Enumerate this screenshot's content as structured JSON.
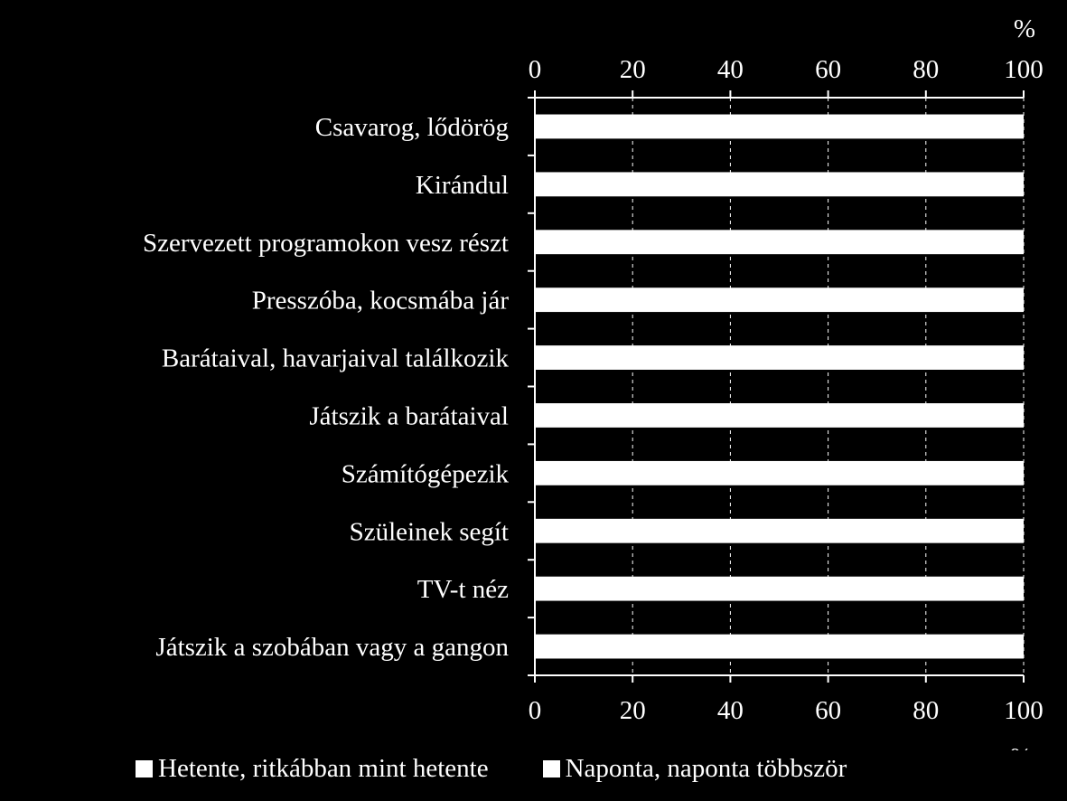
{
  "chart_data": {
    "type": "bar",
    "orientation": "horizontal",
    "stacked": true,
    "categories": [
      "Csavarog, lődörög",
      "Kirándul",
      "Szervezett programokon vesz részt",
      "Presszóba, kocsmába jár",
      "Barátaival, havarjaival találkozik",
      "Játszik a barátaival",
      "Számítógépezik",
      "Szüleinek segít",
      "TV-t néz",
      "Játszik a szobában vagy a gangon"
    ],
    "series": [
      {
        "name": "Hetente, ritkábban mint hetente",
        "color": "#ffffff",
        "values": [
          100,
          100,
          100,
          100,
          100,
          100,
          100,
          100,
          100,
          100
        ]
      },
      {
        "name": "Naponta, naponta többször",
        "color": "#ffffff",
        "values": [
          0,
          0,
          0,
          0,
          0,
          0,
          0,
          0,
          0,
          0
        ]
      }
    ],
    "xlim": [
      0,
      100
    ],
    "xticks": [
      0,
      20,
      40,
      60,
      80,
      100
    ],
    "axis_unit_top": "%",
    "axis_unit_bottom": "%",
    "grid": "vertical dashed",
    "legend_position": "bottom"
  }
}
